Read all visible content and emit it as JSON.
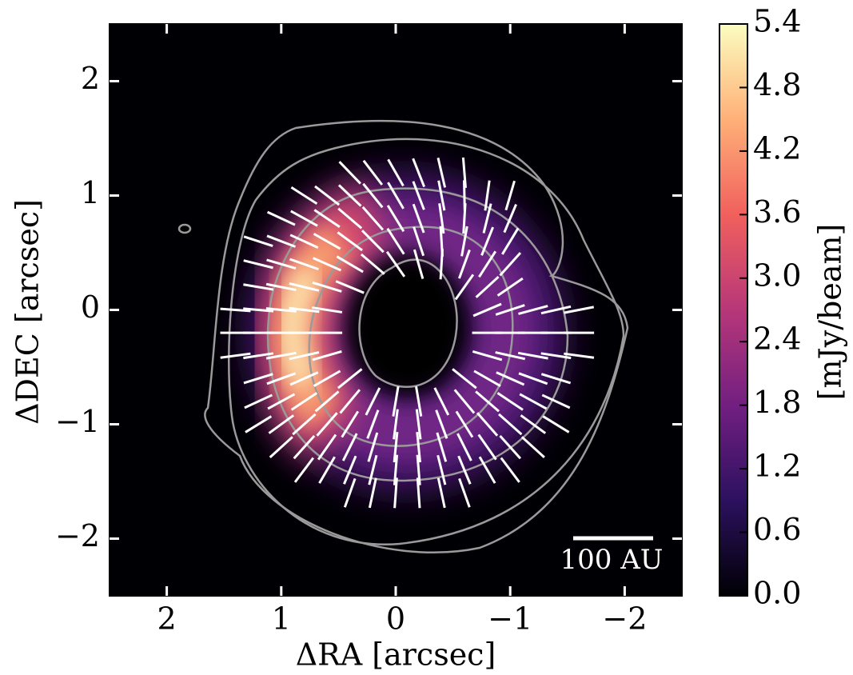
{
  "chart_data": {
    "type": "image",
    "xlabel": "ΔRA [arcsec]",
    "ylabel": "ΔDEC [arcsec]",
    "xlim": [
      2.5,
      -2.5
    ],
    "ylim": [
      -2.5,
      2.5
    ],
    "xticks": [
      2,
      1,
      0,
      {
        "value": -1,
        "label": "−1"
      },
      {
        "value": -2,
        "label": "−2"
      }
    ],
    "yticks": [
      {
        "value": -2,
        "label": "−2"
      },
      {
        "value": -1,
        "label": "−1"
      },
      0,
      1,
      2
    ],
    "scalebar_label": "100 AU",
    "colorbar": {
      "label": "[mJy/beam]",
      "lim": [
        0,
        5.4
      ],
      "ticks": [
        {
          "value": 0,
          "label": "0.0"
        },
        0.6,
        1.2,
        1.8,
        2.4,
        {
          "value": 3,
          "label": "3.0"
        },
        3.6,
        4.2,
        4.8,
        5.4
      ],
      "colormap": [
        "#000004",
        "#2c115f",
        "#721f81",
        "#b73779",
        "#f1605d",
        "#feb078",
        "#fcfdbf"
      ]
    }
  }
}
